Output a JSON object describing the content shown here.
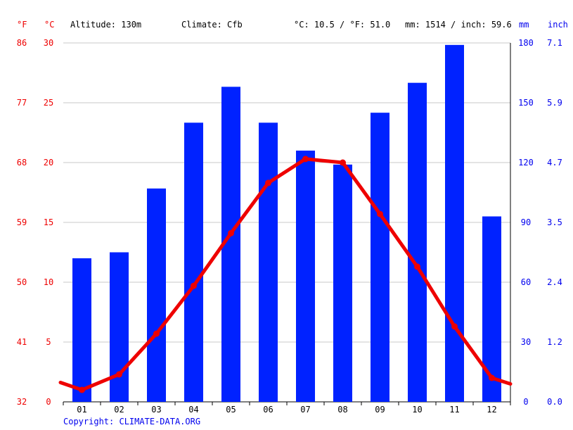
{
  "header": {
    "unit_f": "°F",
    "unit_c": "°C",
    "altitude": "Altitude: 130m",
    "climate": "Climate: Cfb",
    "temp_avg": "°C: 10.5 / °F: 51.0",
    "precip_total": "mm: 1514 / inch: 59.6",
    "unit_mm": "mm",
    "unit_inch": "inch"
  },
  "footer": {
    "copyright": "Copyright: CLIMATE-DATA.ORG"
  },
  "colors": {
    "temp": "#ee0000",
    "precip": "#0022ff",
    "grid": "#c8c8c8",
    "axis_text_red": "#ee0000",
    "axis_text_blue": "#0000ee"
  },
  "chart_data": {
    "type": "bar+line",
    "categories": [
      "01",
      "02",
      "03",
      "04",
      "05",
      "06",
      "07",
      "08",
      "09",
      "10",
      "11",
      "12"
    ],
    "series": [
      {
        "type": "bar",
        "axis": "right",
        "values": [
          72,
          75,
          107,
          140,
          158,
          140,
          126,
          119,
          145,
          160,
          179,
          93
        ]
      },
      {
        "type": "line",
        "axis": "left",
        "values": [
          1.0,
          2.3,
          5.7,
          9.7,
          14.1,
          18.3,
          20.3,
          20.0,
          15.7,
          11.3,
          6.3,
          2.0
        ]
      }
    ],
    "left_axis": {
      "celsius_ticks": [
        "0",
        "5",
        "10",
        "15",
        "20",
        "25",
        "30"
      ],
      "fahrenheit_ticks": [
        "32",
        "41",
        "50",
        "59",
        "68",
        "77",
        "86"
      ],
      "ylim": [
        0,
        30
      ]
    },
    "right_axis": {
      "mm_ticks": [
        "0",
        "30",
        "60",
        "90",
        "120",
        "150",
        "180"
      ],
      "inch_ticks": [
        "0.0",
        "1.2",
        "2.4",
        "3.5",
        "4.7",
        "5.9",
        "7.1"
      ],
      "ylim": [
        0,
        180
      ]
    },
    "grid": true
  }
}
